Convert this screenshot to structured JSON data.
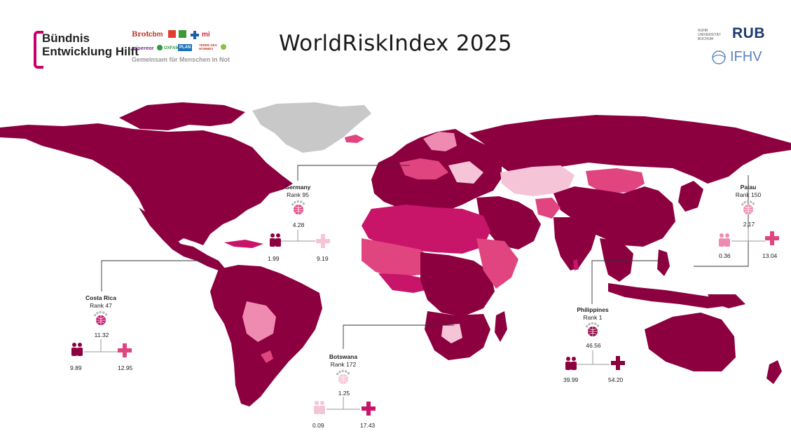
{
  "header": {
    "title": "WorldRiskIndex 2025",
    "alliance_line1": "Bündnis",
    "alliance_line2": "Entwicklung Hilft",
    "tagline": "Gemeinsam für Menschen in Not",
    "partners": [
      "Brot",
      "cbm",
      "misereor",
      "OXFAM",
      "PLAN",
      "TERRE DES HOMMES",
      "WELTHUNGERHILFE"
    ],
    "uni_line1": "RUHR",
    "uni_line2": "UNIVERSITÄT",
    "uni_line3": "BOCHUM",
    "rub": "RUB",
    "ifhv": "IFHV"
  },
  "colors": {
    "very_high": "#8c0040",
    "high": "#c8156a",
    "medium": "#e0457f",
    "low": "#ef8bb0",
    "very_low": "#f6c4d7",
    "no_data": "#c8c8c8",
    "brand": "#c8006a"
  },
  "countries": {
    "germany": {
      "name": "Germany",
      "rank": "Rank 95",
      "risk": "4.28",
      "exposure": "1.99",
      "vulnerability": "9.19"
    },
    "costa_rica": {
      "name": "Costa Rica",
      "rank": "Rank 47",
      "risk": "11.32",
      "exposure": "9.89",
      "vulnerability": "12.95"
    },
    "botswana": {
      "name": "Botswana",
      "rank": "Rank 172",
      "risk": "1.25",
      "exposure": "0.09",
      "vulnerability": "17.43"
    },
    "philippines": {
      "name": "Philippines",
      "rank": "Rank 1",
      "risk": "46.56",
      "exposure": "39.99",
      "vulnerability": "54.20"
    },
    "palau": {
      "name": "Palau",
      "rank": "Rank 150",
      "risk": "2.17",
      "exposure": "0.36",
      "vulnerability": "13.04"
    }
  },
  "icons": {
    "risk": "globe-risk-icon",
    "exposure": "people-exposure-icon",
    "vulnerability": "medical-cross-icon"
  }
}
